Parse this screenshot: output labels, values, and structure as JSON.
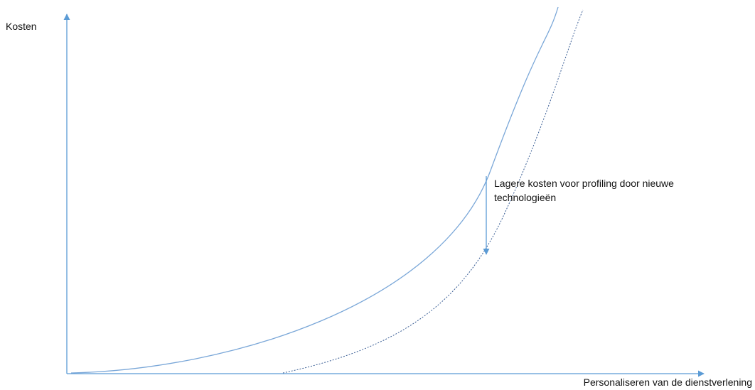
{
  "diagram": {
    "y_axis_label": "Kosten",
    "x_axis_label": "Personaliseren van de dienstverlening",
    "annotation": "Lagere kosten voor profiling door nieuwe technologieën",
    "curves": [
      {
        "id": "current-costs",
        "style": "solid"
      },
      {
        "id": "lower-costs",
        "style": "dashed"
      }
    ],
    "colors": {
      "axis": "#5b9bd5",
      "curve": "#7aa7d8",
      "curve_dashed": "#3a5e95",
      "text": "#111111"
    }
  }
}
